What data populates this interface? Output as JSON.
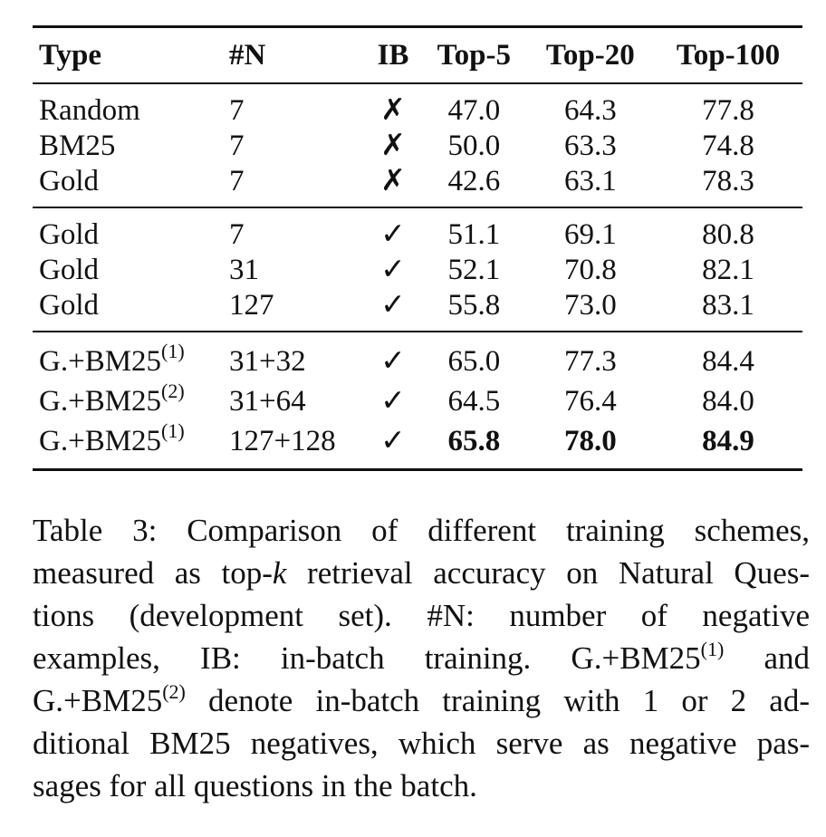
{
  "table": {
    "headers": [
      "Type",
      "#N",
      "IB",
      "Top-5",
      "Top-20",
      "Top-100"
    ],
    "groups": [
      [
        {
          "type": "Random",
          "n": "7",
          "ib": "✗",
          "top5": "47.0",
          "top20": "64.3",
          "top100": "77.8"
        },
        {
          "type": "BM25",
          "n": "7",
          "ib": "✗",
          "top5": "50.0",
          "top20": "63.3",
          "top100": "74.8"
        },
        {
          "type": "Gold",
          "n": "7",
          "ib": "✗",
          "top5": "42.6",
          "top20": "63.1",
          "top100": "78.3"
        }
      ],
      [
        {
          "type": "Gold",
          "n": "7",
          "ib": "✓",
          "top5": "51.1",
          "top20": "69.1",
          "top100": "80.8"
        },
        {
          "type": "Gold",
          "n": "31",
          "ib": "✓",
          "top5": "52.1",
          "top20": "70.8",
          "top100": "82.1"
        },
        {
          "type": "Gold",
          "n": "127",
          "ib": "✓",
          "top5": "55.8",
          "top20": "73.0",
          "top100": "83.1"
        }
      ],
      [
        {
          "type": "G.+BM25",
          "type_sup": "(1)",
          "n": "31+32",
          "ib": "✓",
          "top5": "65.0",
          "top20": "77.3",
          "top100": "84.4"
        },
        {
          "type": "G.+BM25",
          "type_sup": "(2)",
          "n": "31+64",
          "ib": "✓",
          "top5": "64.5",
          "top20": "76.4",
          "top100": "84.0"
        },
        {
          "type": "G.+BM25",
          "type_sup": "(1)",
          "n": "127+128",
          "ib": "✓",
          "top5": "65.8",
          "top20": "78.0",
          "top100": "84.9",
          "bold": true
        }
      ]
    ]
  },
  "caption": {
    "line1": "Table 3:  Comparison of different training schemes,",
    "line2_a": "measured as top-",
    "line2_k": "k",
    "line2_b": " retrieval accuracy on Natural Ques-",
    "line3": "tions (development set).   #N: number of negative",
    "line4_a": "examples, IB: in-batch training.   G.+BM25",
    "line4_sup": "(1)",
    "line4_b": " and",
    "line5_a": "G.+BM25",
    "line5_sup": "(2)",
    "line5_b": " denote in-batch training with 1 or 2 ad-",
    "line6": "ditional BM25 negatives, which serve as negative pas-",
    "line7": "sages for all questions in the batch."
  }
}
